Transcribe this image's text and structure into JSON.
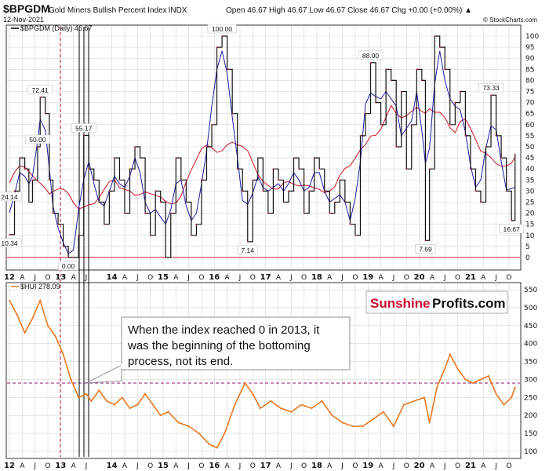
{
  "header": {
    "ticker": "$BPGDM",
    "name": "Gold Miners Bullish Percent Index",
    "exchange": "INDX",
    "date": "12-Nov-2021",
    "ohlc": "Open 46.67   High 46.67   Low 46.67   Close 46.67   Chg +0.00 (+0.00%) ▲",
    "watermark": "© StockCharts.com",
    "brand_colors": {
      "bullish_line": "#000000",
      "fast_ma": "#1a1aa6",
      "slow_ma": "#cc1122",
      "hui_line": "#e8781e",
      "brand_red": "#c8102e"
    }
  },
  "chart_data": [
    {
      "type": "line",
      "legend": "$BPGDM (Daily) 46.67",
      "ylim": [
        0,
        100
      ],
      "yticks": [
        0,
        5,
        10,
        15,
        20,
        25,
        30,
        35,
        40,
        45,
        50,
        55,
        60,
        65,
        70,
        75,
        80,
        85,
        90,
        95,
        100
      ],
      "x_labels": [
        "12",
        "A",
        "J",
        "O",
        "13",
        "A",
        "J",
        "14",
        "A",
        "J",
        "O",
        "15",
        "A",
        "J",
        "O",
        "16",
        "A",
        "J",
        "O",
        "17",
        "A",
        "J",
        "O",
        "18",
        "A",
        "J",
        "O",
        "19",
        "A",
        "J",
        "O",
        "20",
        "A",
        "J",
        "O",
        "21",
        "A",
        "J",
        "O"
      ],
      "series": [
        {
          "x": [
            2012.0,
            2012.1,
            2012.2,
            2012.3,
            2012.38,
            2012.45,
            2012.55,
            2012.6,
            2012.7,
            2012.78,
            2012.85,
            2012.95,
            2013.05,
            2013.15,
            2013.25,
            2013.35,
            2013.45,
            2013.55,
            2013.65,
            2013.75,
            2013.85,
            2013.95,
            2014.05,
            2014.15,
            2014.25,
            2014.35,
            2014.45,
            2014.55,
            2014.65,
            2014.75,
            2014.85,
            2014.95,
            2015.05,
            2015.15,
            2015.25,
            2015.35,
            2015.45,
            2015.55,
            2015.65,
            2015.75,
            2015.85,
            2015.95,
            2016.05,
            2016.15,
            2016.25,
            2016.35,
            2016.45,
            2016.55,
            2016.65,
            2016.75,
            2016.85,
            2016.95,
            2017.05,
            2017.15,
            2017.25,
            2017.35,
            2017.45,
            2017.55,
            2017.65,
            2017.75,
            2017.85,
            2017.95,
            2018.05,
            2018.15,
            2018.25,
            2018.35,
            2018.45,
            2018.55,
            2018.65,
            2018.75,
            2018.85,
            2018.95,
            2019.05,
            2019.15,
            2019.25,
            2019.35,
            2019.45,
            2019.55,
            2019.65,
            2019.75,
            2019.85,
            2019.95,
            2020.05,
            2020.12,
            2020.2,
            2020.3,
            2020.4,
            2020.5,
            2020.6,
            2020.7,
            2020.8,
            2020.9,
            2021.0,
            2021.1,
            2021.2,
            2021.3,
            2021.4,
            2021.5,
            2021.6,
            2021.7,
            2021.8,
            2021.87
          ],
          "values": [
            10.34,
            30,
            45,
            40,
            25,
            35,
            50,
            72.41,
            65,
            35,
            20,
            15,
            5,
            0,
            0,
            10,
            55.17,
            40,
            35,
            25,
            15,
            30,
            45,
            35,
            20,
            40,
            50,
            45,
            20,
            10,
            30,
            25,
            0,
            20,
            45,
            35,
            25,
            10,
            15,
            35,
            50,
            60,
            95,
            100,
            85,
            65,
            40,
            30,
            7.14,
            35,
            45,
            30,
            20,
            40,
            35,
            25,
            30,
            45,
            40,
            20,
            30,
            45,
            40,
            30,
            20,
            25,
            35,
            25,
            15,
            10,
            55,
            65,
            88.0,
            70,
            60,
            85,
            80,
            50,
            75,
            40,
            60,
            85,
            80,
            7.69,
            40,
            100,
            95,
            85,
            60,
            70,
            75,
            55,
            40,
            30,
            25,
            50,
            73.33,
            55,
            45,
            30,
            16.67,
            46.67
          ]
        }
      ],
      "annotations": [
        "10.34",
        "72.41",
        "55.17",
        "50.00",
        "0.00",
        "7.14",
        "88.00",
        "7.69",
        "100.00",
        "73.33",
        "24.14",
        "16.67"
      ]
    },
    {
      "type": "line",
      "legend": "$HUI 278.09",
      "ylim": [
        100,
        550
      ],
      "yticks": [
        100,
        150,
        200,
        250,
        300,
        350,
        400,
        450,
        500,
        550
      ],
      "x_labels": [
        "12",
        "A",
        "J",
        "O",
        "13",
        "A",
        "J",
        "14",
        "A",
        "J",
        "O",
        "15",
        "A",
        "J",
        "O",
        "16",
        "A",
        "J",
        "O",
        "17",
        "A",
        "J",
        "O",
        "18",
        "A",
        "J",
        "O",
        "19",
        "A",
        "J",
        "O",
        "20",
        "A",
        "J",
        "O",
        "21",
        "A",
        "J",
        "O"
      ],
      "series": [
        {
          "x": [
            2012.0,
            2012.15,
            2012.3,
            2012.45,
            2012.6,
            2012.75,
            2012.9,
            2013.05,
            2013.2,
            2013.35,
            2013.5,
            2013.6,
            2013.75,
            2013.9,
            2014.05,
            2014.2,
            2014.35,
            2014.5,
            2014.65,
            2014.8,
            2014.95,
            2015.1,
            2015.3,
            2015.5,
            2015.7,
            2015.9,
            2016.05,
            2016.2,
            2016.4,
            2016.6,
            2016.75,
            2016.9,
            2017.1,
            2017.3,
            2017.5,
            2017.7,
            2017.9,
            2018.1,
            2018.3,
            2018.5,
            2018.7,
            2018.9,
            2019.1,
            2019.3,
            2019.5,
            2019.7,
            2019.9,
            2020.1,
            2020.2,
            2020.35,
            2020.5,
            2020.6,
            2020.75,
            2020.9,
            2021.05,
            2021.2,
            2021.35,
            2021.5,
            2021.65,
            2021.8,
            2021.87
          ],
          "values": [
            520,
            480,
            430,
            470,
            520,
            450,
            420,
            370,
            300,
            250,
            260,
            240,
            270,
            240,
            230,
            250,
            220,
            230,
            260,
            230,
            200,
            210,
            180,
            170,
            150,
            120,
            110,
            150,
            230,
            290,
            260,
            220,
            240,
            220,
            210,
            230,
            220,
            240,
            200,
            180,
            170,
            170,
            190,
            210,
            170,
            230,
            240,
            250,
            180,
            280,
            330,
            370,
            330,
            300,
            290,
            300,
            310,
            260,
            230,
            250,
            278.09
          ]
        }
      ],
      "reference_line": 290
    }
  ],
  "callout": {
    "text": "When the index reached 0 in 2013, it was the beginning of the bottoming process, not its end."
  },
  "brand": {
    "part1": "Sunshine",
    "part2": "Profits.com"
  }
}
